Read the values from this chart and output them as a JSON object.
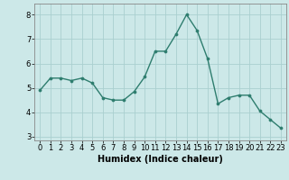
{
  "x": [
    0,
    1,
    2,
    3,
    4,
    5,
    6,
    7,
    8,
    9,
    10,
    11,
    12,
    13,
    14,
    15,
    16,
    17,
    18,
    19,
    20,
    21,
    22,
    23
  ],
  "y": [
    4.9,
    5.4,
    5.4,
    5.3,
    5.4,
    5.2,
    4.6,
    4.5,
    4.5,
    4.85,
    5.45,
    6.5,
    6.5,
    7.2,
    8.0,
    7.35,
    6.2,
    4.35,
    4.6,
    4.7,
    4.7,
    4.05,
    3.7,
    3.35
  ],
  "line_color": "#2e7d6e",
  "marker": "o",
  "marker_size": 2.2,
  "linewidth": 1.0,
  "bg_color": "#cce8e8",
  "grid_color": "#aacfcf",
  "xlim": [
    -0.5,
    23.5
  ],
  "ylim": [
    2.85,
    8.45
  ],
  "yticks": [
    3,
    4,
    5,
    6,
    7,
    8
  ],
  "xticks": [
    0,
    1,
    2,
    3,
    4,
    5,
    6,
    7,
    8,
    9,
    10,
    11,
    12,
    13,
    14,
    15,
    16,
    17,
    18,
    19,
    20,
    21,
    22,
    23
  ],
  "xlabel": "Humidex (Indice chaleur)",
  "xlabel_fontsize": 7,
  "tick_fontsize": 6,
  "spine_color": "#888888"
}
